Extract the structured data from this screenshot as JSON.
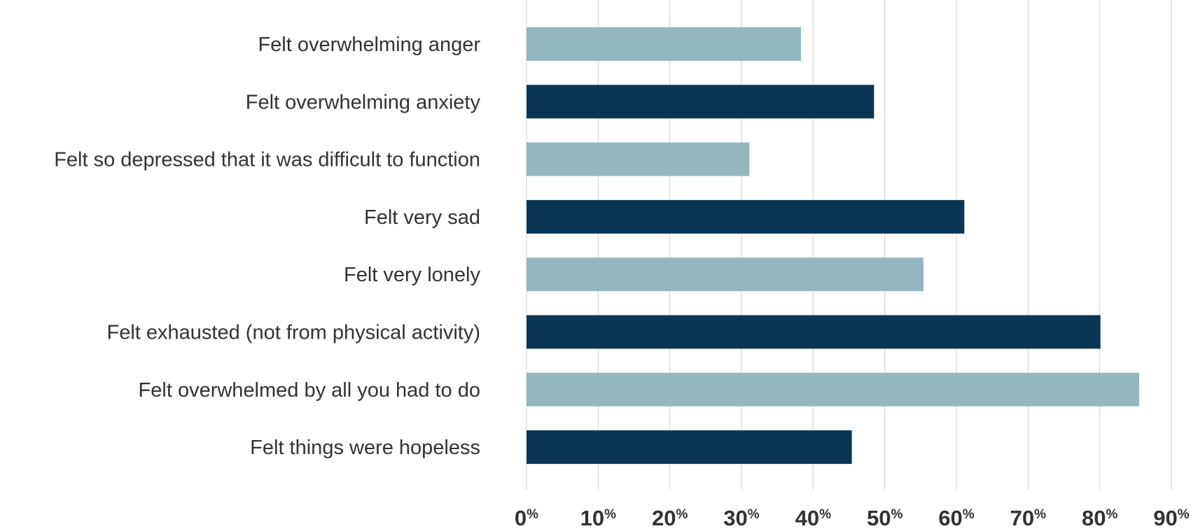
{
  "chart_data": {
    "type": "bar",
    "orientation": "horizontal",
    "title": "",
    "xlabel": "",
    "ylabel": "",
    "categories": [
      "Felt overwhelming anger",
      "Felt overwhelming anxiety",
      "Felt so depressed that it was difficult to function",
      "Felt very sad",
      "Felt very lonely",
      "Felt exhausted (not from physical activity)",
      "Felt overwhelmed by all you had to do",
      "Felt things were hopeless"
    ],
    "values": [
      38.3,
      48.5,
      31.1,
      61.1,
      55.4,
      80.1,
      85.5,
      45.4
    ],
    "xlim": [
      0,
      90
    ],
    "ticks": [
      0,
      10,
      20,
      30,
      40,
      50,
      60,
      70,
      80,
      90
    ],
    "tick_suffix": "%",
    "grid": true,
    "legend": "none",
    "bar_colors": [
      "#93b7bf",
      "#0b3554"
    ]
  }
}
